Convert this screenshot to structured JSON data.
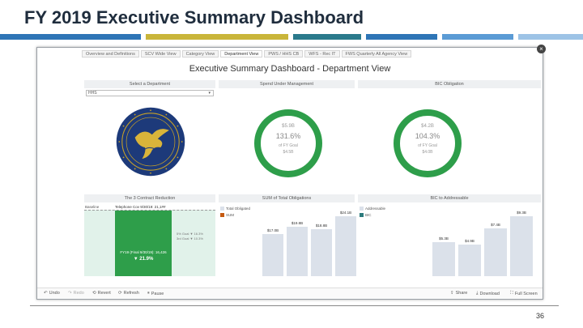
{
  "slide": {
    "title": "FY 2019 Executive Summary Dashboard",
    "page_number": "36",
    "accent_colors": [
      "#2e75b6",
      "#c9b53a",
      "#2e75b6",
      "#2b7a8c",
      "#5b9bd5",
      "#9dc3e6"
    ]
  },
  "dashboard": {
    "tabs": [
      "Overview and Definitions",
      "SCV Wide View",
      "Category View",
      "Department View",
      "PWS / HHS CB",
      "WFS - Rec IT",
      "FWS Quarterly All Agency View"
    ],
    "active_tab_index": 3,
    "title": "Executive Summary Dashboard - Department View",
    "panels": {
      "select_department": {
        "header": "Select a Department",
        "dropdown_value": "HHS",
        "seal_icon": "hhs-seal-icon"
      },
      "spend_under_management": {
        "header": "Spend Under Management",
        "line1": "$5.9B",
        "percent": "131.6%",
        "line3": "of FY Goal",
        "line4": "$4.5B",
        "percent_value": 131.6,
        "ring_color": "#2e9e4a"
      },
      "bic_obligation": {
        "header": "BIC Obligation",
        "line1": "$4.2B",
        "percent": "104.3%",
        "line3": "of FY Goal",
        "line4": "$4.0B",
        "percent_value": 104.3,
        "ring_color": "#2e9e4a"
      },
      "contract_reduction": {
        "header": "The 3 Contract Reduction",
        "baseline_label": "Baseline",
        "baseline_value": "Telephone Cov 9/30/19: 21,1##",
        "target_line1": "5% Goal",
        "target_line1_value": "▼ 16.3%",
        "target_line2": "3rd Goal",
        "target_line2_value": "▼ 10.3%",
        "bar_label": "FY19 (Final 9/30/19): 16,426",
        "bar_percent": "▼ 21.9%",
        "bar_color": "#2e9e4a",
        "baseline_fill": "#dff1e8"
      },
      "total_obligations": {
        "header": "SUM of Total Obligations",
        "legend": [
          {
            "label": "Total Obligated",
            "color": "#dbe1ea"
          },
          {
            "label": "SUM",
            "color": "#c55a11"
          }
        ],
        "bars": [
          {
            "label": "$17.0B",
            "value": 17.0
          },
          {
            "label": "$19.8B",
            "value": 19.8
          },
          {
            "label": "$18.8B",
            "value": 18.8
          },
          {
            "label": "$24.1B",
            "value": 24.1
          }
        ]
      },
      "bic_addressable": {
        "header": "BIC to Addressable",
        "legend": [
          {
            "label": "Addressable",
            "color": "#dbe1ea"
          },
          {
            "label": "BIC",
            "color": "#2b7a7c"
          }
        ],
        "bars": [
          {
            "label": "$5.3B",
            "value": 5.3
          },
          {
            "label": "$4.9B",
            "value": 4.9
          },
          {
            "label": "$7.4B",
            "value": 7.4
          },
          {
            "label": "$9.3B",
            "value": 9.3
          }
        ]
      }
    },
    "toolbar": {
      "undo": "Undo",
      "redo": "Redo",
      "revert": "Revert",
      "refresh": "Refresh",
      "pause": "Pause",
      "share": "Share",
      "download": "Download",
      "full_screen": "Full Screen"
    }
  }
}
